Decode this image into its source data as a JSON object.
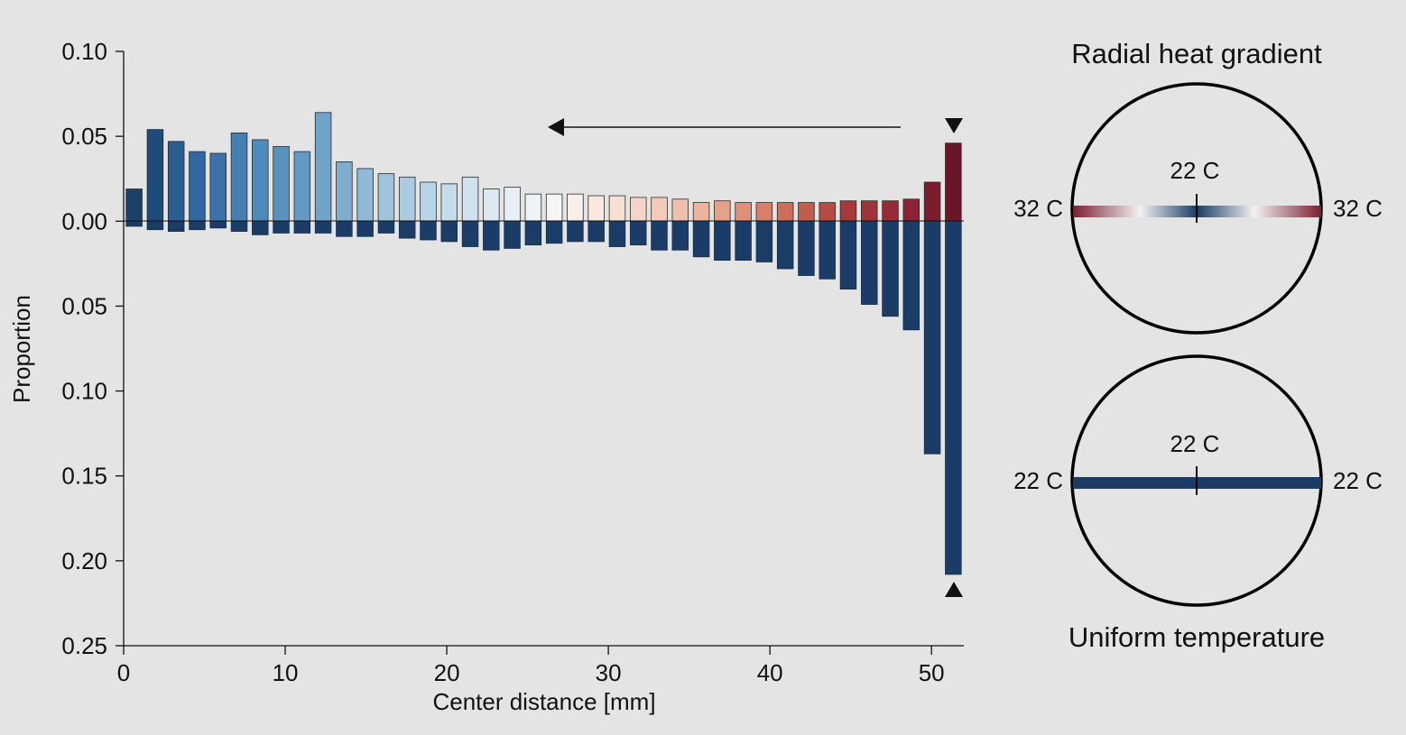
{
  "chart_data": [
    {
      "type": "bar",
      "xlabel": "Center distance [mm]",
      "ylabel": "Proportion",
      "xlim": [
        0,
        52
      ],
      "ylim": [
        -0.25,
        0.1
      ],
      "x_ticks": [
        0,
        10,
        20,
        30,
        40,
        50
      ],
      "y_ticks": [
        0.1,
        0.05,
        0.0,
        -0.05,
        -0.1,
        -0.15,
        -0.2,
        -0.25
      ],
      "y_tick_labels": [
        "0.10",
        "0.05",
        "0.00",
        "0.05",
        "0.10",
        "0.15",
        "0.20",
        "0.25"
      ],
      "grid": false,
      "bin_width_mm": 1.3,
      "x": [
        0.65,
        1.95,
        3.25,
        4.55,
        5.85,
        7.15,
        8.45,
        9.75,
        11.05,
        12.35,
        13.65,
        14.95,
        16.25,
        17.55,
        18.85,
        20.15,
        21.45,
        22.75,
        24.05,
        25.35,
        26.65,
        27.95,
        29.25,
        30.55,
        31.85,
        33.15,
        34.45,
        35.75,
        37.05,
        38.35,
        39.65,
        40.95,
        42.25,
        43.55,
        44.85,
        46.15,
        47.45,
        48.75,
        50.05,
        51.35
      ],
      "series": [
        {
          "values": [
            0.019,
            0.054,
            0.047,
            0.041,
            0.04,
            0.052,
            0.048,
            0.044,
            0.041,
            0.064,
            0.035,
            0.031,
            0.028,
            0.026,
            0.023,
            0.022,
            0.026,
            0.019,
            0.02,
            0.016,
            0.016,
            0.016,
            0.015,
            0.015,
            0.014,
            0.014,
            0.013,
            0.011,
            0.012,
            0.011,
            0.011,
            0.011,
            0.011,
            0.011,
            0.012,
            0.012,
            0.012,
            0.013,
            0.023,
            0.046
          ],
          "colors": [
            "#1c4068",
            "#1f4b7a",
            "#2a5e92",
            "#3267a0",
            "#3a72a9",
            "#4680b2",
            "#4f8bba",
            "#5893c0",
            "#6499c4",
            "#6fa3c9",
            "#7eadcf",
            "#8fb9d6",
            "#9ec3db",
            "#aacbe0",
            "#b9d5e5",
            "#c5dcea",
            "#cfe2ed",
            "#dce9f0",
            "#e6eff4",
            "#eef3f6",
            "#f7f5f4",
            "#f8efea",
            "#f9e8e0",
            "#f8e0d5",
            "#f6d5c8",
            "#f4cbbb",
            "#f1c0ad",
            "#ecb39e",
            "#e6a18b",
            "#df9079",
            "#d67f69",
            "#cc6e5a",
            "#c15d4c",
            "#b54b42",
            "#a8393a",
            "#a03339",
            "#962a36",
            "#8c2334",
            "#7c1c2f",
            "#6a1528"
          ]
        },
        {
          "values": [
            -0.003,
            -0.005,
            -0.006,
            -0.005,
            -0.004,
            -0.006,
            -0.008,
            -0.007,
            -0.007,
            -0.007,
            -0.009,
            -0.009,
            -0.007,
            -0.01,
            -0.011,
            -0.012,
            -0.015,
            -0.017,
            -0.016,
            -0.014,
            -0.013,
            -0.012,
            -0.012,
            -0.015,
            -0.014,
            -0.017,
            -0.017,
            -0.021,
            -0.023,
            -0.023,
            -0.024,
            -0.028,
            -0.032,
            -0.034,
            -0.04,
            -0.049,
            -0.056,
            -0.064,
            -0.137,
            -0.208
          ],
          "color": "#1b3c66"
        }
      ],
      "annotations": [
        "arrow pointing left",
        "triangle markers at 51.35 mm"
      ]
    },
    {
      "type": "diagram",
      "title": "Radial heat gradient",
      "center_label": "22 C",
      "left_label": "32 C",
      "right_label": "32 C",
      "gradient_colors": [
        "#7a1f30",
        "#f2f2f2",
        "#1b3c66",
        "#f2f2f2",
        "#7a1f30"
      ]
    },
    {
      "type": "diagram",
      "title": "Uniform temperature",
      "center_label": "22 C",
      "left_label": "22 C",
      "right_label": "22 C",
      "bar_color": "#1b3c66"
    }
  ]
}
